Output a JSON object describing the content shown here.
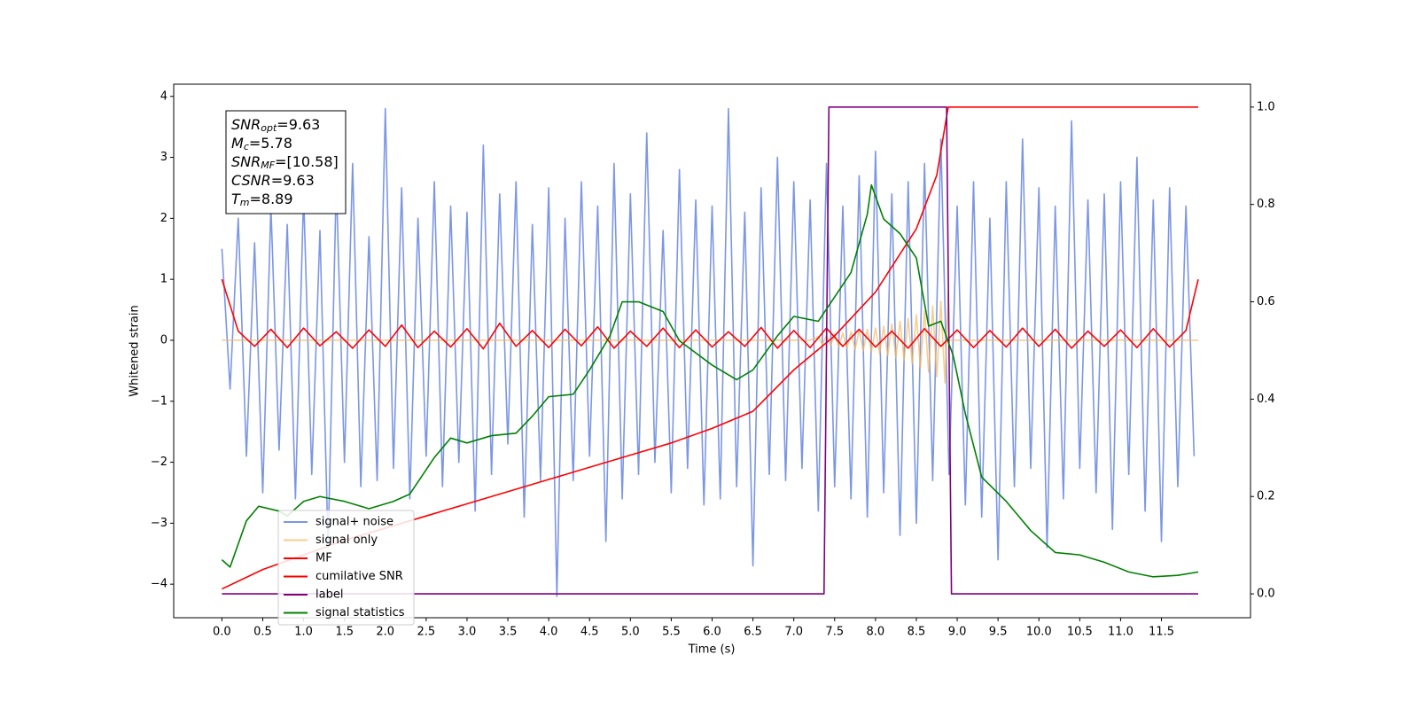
{
  "chart_data": {
    "type": "line",
    "xlabel": "Time (s)",
    "ylabel": "Whitened strain",
    "xlim": [
      -0.59,
      12.59
    ],
    "ylim": [
      -4.55,
      4.2
    ],
    "y2lim": [
      -0.049,
      1.047
    ],
    "xticks": [
      {
        "value": 0,
        "label": "0.0"
      },
      {
        "value": 0.5,
        "label": "0.5"
      },
      {
        "value": 1,
        "label": "1.0"
      },
      {
        "value": 1.5,
        "label": "1.5"
      },
      {
        "value": 2,
        "label": "2.0"
      },
      {
        "value": 2.5,
        "label": "2.5"
      },
      {
        "value": 3,
        "label": "3.0"
      },
      {
        "value": 3.5,
        "label": "3.5"
      },
      {
        "value": 4,
        "label": "4.0"
      },
      {
        "value": 4.5,
        "label": "4.5"
      },
      {
        "value": 5,
        "label": "5.0"
      },
      {
        "value": 5.5,
        "label": "5.5"
      },
      {
        "value": 6,
        "label": "6.0"
      },
      {
        "value": 6.5,
        "label": "6.5"
      },
      {
        "value": 7,
        "label": "7.0"
      },
      {
        "value": 7.5,
        "label": "7.5"
      },
      {
        "value": 8,
        "label": "8.0"
      },
      {
        "value": 8.5,
        "label": "8.5"
      },
      {
        "value": 9,
        "label": "9.0"
      },
      {
        "value": 9.5,
        "label": "9.5"
      },
      {
        "value": 10,
        "label": "10.0"
      },
      {
        "value": 10.5,
        "label": "10.5"
      },
      {
        "value": 11,
        "label": "11.0"
      },
      {
        "value": 11.5,
        "label": "11.5"
      }
    ],
    "yticks": [
      {
        "value": -4,
        "label": "−4"
      },
      {
        "value": -3,
        "label": "−3"
      },
      {
        "value": -2,
        "label": "−2"
      },
      {
        "value": -1,
        "label": "−1"
      },
      0,
      1,
      2,
      3,
      4
    ],
    "y2ticks": [
      {
        "value": 0,
        "label": "0.0"
      },
      {
        "value": 0.2,
        "label": "0.2"
      },
      {
        "value": 0.4,
        "label": "0.4"
      },
      {
        "value": 0.6,
        "label": "0.6"
      },
      {
        "value": 0.8,
        "label": "0.8"
      },
      {
        "value": 1,
        "label": "1.0"
      }
    ],
    "grid": false,
    "legend": "lower left",
    "annotation": [
      {
        "text": "SNR",
        "sub": "opt",
        "rest": "=9.63"
      },
      {
        "text": "M",
        "sub": "c",
        "rest": "=5.78"
      },
      {
        "text": "SNR",
        "sub": "MF",
        "rest": "=[10.58]"
      },
      {
        "text": "CSNR",
        "rest": "=9.63"
      },
      {
        "text": "T",
        "sub": "m",
        "rest": "=8.89"
      }
    ],
    "series": [
      {
        "name": "signal+ noise",
        "color": "#7b96e6",
        "x": [
          0,
          0.1,
          0.2,
          0.3,
          0.4,
          0.5,
          0.6,
          0.7,
          0.8,
          0.9,
          1,
          1.1,
          1.2,
          1.3,
          1.4,
          1.5,
          1.6,
          1.7,
          1.8,
          1.9,
          2,
          2.1,
          2.2,
          2.3,
          2.4,
          2.5,
          2.6,
          2.7,
          2.8,
          2.9,
          3,
          3.1,
          3.2,
          3.3,
          3.4,
          3.5,
          3.6,
          3.7,
          3.8,
          3.9,
          4,
          4.1,
          4.2,
          4.3,
          4.4,
          4.5,
          4.6,
          4.7,
          4.8,
          4.9,
          5,
          5.1,
          5.2,
          5.3,
          5.4,
          5.5,
          5.6,
          5.7,
          5.8,
          5.9,
          6,
          6.1,
          6.2,
          6.3,
          6.4,
          6.5,
          6.6,
          6.7,
          6.8,
          6.9,
          7,
          7.1,
          7.2,
          7.3,
          7.4,
          7.5,
          7.6,
          7.7,
          7.8,
          7.9,
          8,
          8.1,
          8.2,
          8.3,
          8.4,
          8.5,
          8.6,
          8.7,
          8.8,
          8.9,
          9,
          9.1,
          9.2,
          9.3,
          9.4,
          9.5,
          9.6,
          9.7,
          9.8,
          9.9,
          10,
          10.1,
          10.2,
          10.3,
          10.4,
          10.5,
          10.6,
          10.7,
          10.8,
          10.9,
          11,
          11.1,
          11.2,
          11.3,
          11.4,
          11.5,
          11.6,
          11.7,
          11.8,
          11.9
        ],
        "values": [
          1.5,
          -0.8,
          2.0,
          -1.9,
          1.6,
          -2.5,
          2.2,
          -1.8,
          1.9,
          -2.6,
          2.4,
          -2.2,
          1.8,
          -3.4,
          2.6,
          -2.0,
          2.9,
          -2.4,
          1.7,
          -2.3,
          3.8,
          -2.1,
          2.5,
          -2.6,
          2.0,
          -1.9,
          2.6,
          -2.4,
          2.2,
          -2.0,
          2.1,
          -2.8,
          3.2,
          -2.2,
          2.4,
          -1.7,
          2.6,
          -2.9,
          1.9,
          -2.3,
          2.5,
          -4.2,
          2.0,
          -2.3,
          2.6,
          -1.9,
          2.2,
          -3.3,
          2.9,
          -2.6,
          2.4,
          -2.2,
          3.4,
          -2.0,
          1.8,
          -2.5,
          2.8,
          -2.1,
          2.3,
          -2.7,
          2.2,
          -2.6,
          3.8,
          -2.4,
          2.1,
          -3.7,
          2.5,
          -2.2,
          3.0,
          -2.3,
          2.6,
          -2.1,
          2.3,
          -2.8,
          2.9,
          -2.4,
          2.2,
          -2.6,
          2.7,
          -2.9,
          3.1,
          -2.5,
          2.4,
          -3.2,
          2.6,
          -3.0,
          2.9,
          -2.3,
          3.3,
          -2.2,
          2.2,
          -2.7,
          2.6,
          -2.9,
          2.0,
          -3.6,
          2.6,
          -2.4,
          3.3,
          -2.1,
          2.5,
          -3.4,
          2.2,
          -2.6,
          3.6,
          -2.1,
          2.3,
          -2.5,
          2.4,
          -3.1,
          2.6,
          -2.2,
          3.0,
          -2.8,
          2.3,
          -3.3,
          2.5,
          -2.4,
          2.2,
          -1.9
        ]
      },
      {
        "name": "signal only",
        "color": "#f5b860",
        "x": [
          0,
          7.2,
          7.3,
          7.35,
          7.4,
          7.45,
          7.5,
          7.55,
          7.6,
          7.65,
          7.7,
          7.75,
          7.8,
          7.85,
          7.9,
          7.95,
          8,
          8.05,
          8.1,
          8.15,
          8.2,
          8.25,
          8.3,
          8.35,
          8.4,
          8.45,
          8.5,
          8.55,
          8.6,
          8.65,
          8.7,
          8.75,
          8.8,
          8.85,
          8.89,
          8.9,
          11.95
        ],
        "values": [
          0,
          0,
          0.06,
          -0.07,
          0.08,
          -0.09,
          0.1,
          -0.11,
          0.12,
          -0.13,
          0.14,
          -0.15,
          0.16,
          -0.17,
          0.18,
          -0.19,
          0.2,
          -0.22,
          0.23,
          -0.25,
          0.27,
          -0.29,
          0.31,
          -0.33,
          0.36,
          -0.39,
          0.42,
          -0.45,
          0.48,
          -0.52,
          0.56,
          -0.6,
          0.64,
          -0.7,
          0.8,
          0,
          0
        ]
      },
      {
        "name": "MF",
        "color": "#ff0000",
        "x": [
          0,
          0.2,
          0.4,
          0.6,
          0.8,
          1,
          1.2,
          1.4,
          1.6,
          1.8,
          2,
          2.2,
          2.4,
          2.6,
          2.8,
          3,
          3.2,
          3.4,
          3.6,
          3.8,
          4,
          4.2,
          4.4,
          4.6,
          4.8,
          5,
          5.2,
          5.4,
          5.6,
          5.8,
          6,
          6.2,
          6.4,
          6.6,
          6.8,
          7,
          7.2,
          7.4,
          7.6,
          7.8,
          8,
          8.2,
          8.4,
          8.6,
          8.8,
          9,
          9.2,
          9.4,
          9.6,
          9.8,
          10,
          10.2,
          10.4,
          10.6,
          10.8,
          11,
          11.2,
          11.4,
          11.6,
          11.8,
          11.95
        ],
        "values": [
          1.0,
          0.15,
          -0.1,
          0.18,
          -0.12,
          0.2,
          -0.09,
          0.14,
          -0.13,
          0.17,
          -0.1,
          0.25,
          -0.12,
          0.15,
          -0.11,
          0.19,
          -0.14,
          0.28,
          -0.1,
          0.16,
          -0.12,
          0.18,
          -0.09,
          0.22,
          -0.13,
          0.15,
          -0.1,
          0.2,
          -0.12,
          0.17,
          -0.11,
          0.14,
          -0.1,
          0.21,
          -0.13,
          0.16,
          -0.12,
          0.2,
          -0.1,
          0.18,
          -0.11,
          0.15,
          -0.13,
          0.19,
          -0.1,
          0.17,
          -0.12,
          0.16,
          -0.11,
          0.2,
          -0.1,
          0.18,
          -0.13,
          0.15,
          -0.1,
          0.17,
          -0.12,
          0.19,
          -0.11,
          0.16,
          1.0
        ]
      },
      {
        "name": "cumilative SNR",
        "color": "#ff0000",
        "axis": "y2",
        "x": [
          0,
          0.5,
          1,
          1.5,
          2,
          2.5,
          3,
          3.5,
          4,
          4.5,
          5,
          5.5,
          6,
          6.5,
          7,
          7.5,
          8,
          8.5,
          8.75,
          8.89,
          11.95
        ],
        "values": [
          0.01,
          0.05,
          0.08,
          0.11,
          0.135,
          0.16,
          0.185,
          0.21,
          0.235,
          0.26,
          0.285,
          0.31,
          0.34,
          0.375,
          0.46,
          0.53,
          0.62,
          0.75,
          0.86,
          1.0,
          1.0
        ]
      },
      {
        "name": "label",
        "color": "#800080",
        "axis": "y2",
        "x": [
          0,
          7.37,
          7.43,
          8.87,
          8.93,
          11.95
        ],
        "values": [
          0,
          0,
          1,
          1,
          0,
          0
        ]
      },
      {
        "name": "signal statistics",
        "color": "#008000",
        "axis": "y2",
        "x": [
          0,
          0.1,
          0.3,
          0.45,
          0.7,
          0.8,
          1,
          1.2,
          1.5,
          1.8,
          2.1,
          2.3,
          2.6,
          2.8,
          3,
          3.3,
          3.6,
          3.8,
          4,
          4.3,
          4.5,
          4.75,
          4.9,
          5.1,
          5.4,
          5.6,
          6,
          6.3,
          6.5,
          6.8,
          7,
          7.3,
          7.5,
          7.7,
          7.9,
          7.95,
          8.1,
          8.3,
          8.5,
          8.65,
          8.8,
          8.95,
          9.1,
          9.3,
          9.6,
          9.9,
          10.2,
          10.5,
          10.8,
          11.1,
          11.4,
          11.7,
          11.95
        ],
        "values": [
          0.07,
          0.055,
          0.15,
          0.18,
          0.17,
          0.16,
          0.19,
          0.2,
          0.19,
          0.175,
          0.19,
          0.205,
          0.28,
          0.32,
          0.31,
          0.325,
          0.33,
          0.365,
          0.405,
          0.41,
          0.46,
          0.53,
          0.6,
          0.6,
          0.58,
          0.52,
          0.47,
          0.44,
          0.46,
          0.53,
          0.57,
          0.56,
          0.61,
          0.66,
          0.78,
          0.84,
          0.77,
          0.74,
          0.69,
          0.55,
          0.56,
          0.49,
          0.37,
          0.24,
          0.19,
          0.13,
          0.085,
          0.08,
          0.065,
          0.045,
          0.035,
          0.038,
          0.045
        ]
      }
    ]
  }
}
